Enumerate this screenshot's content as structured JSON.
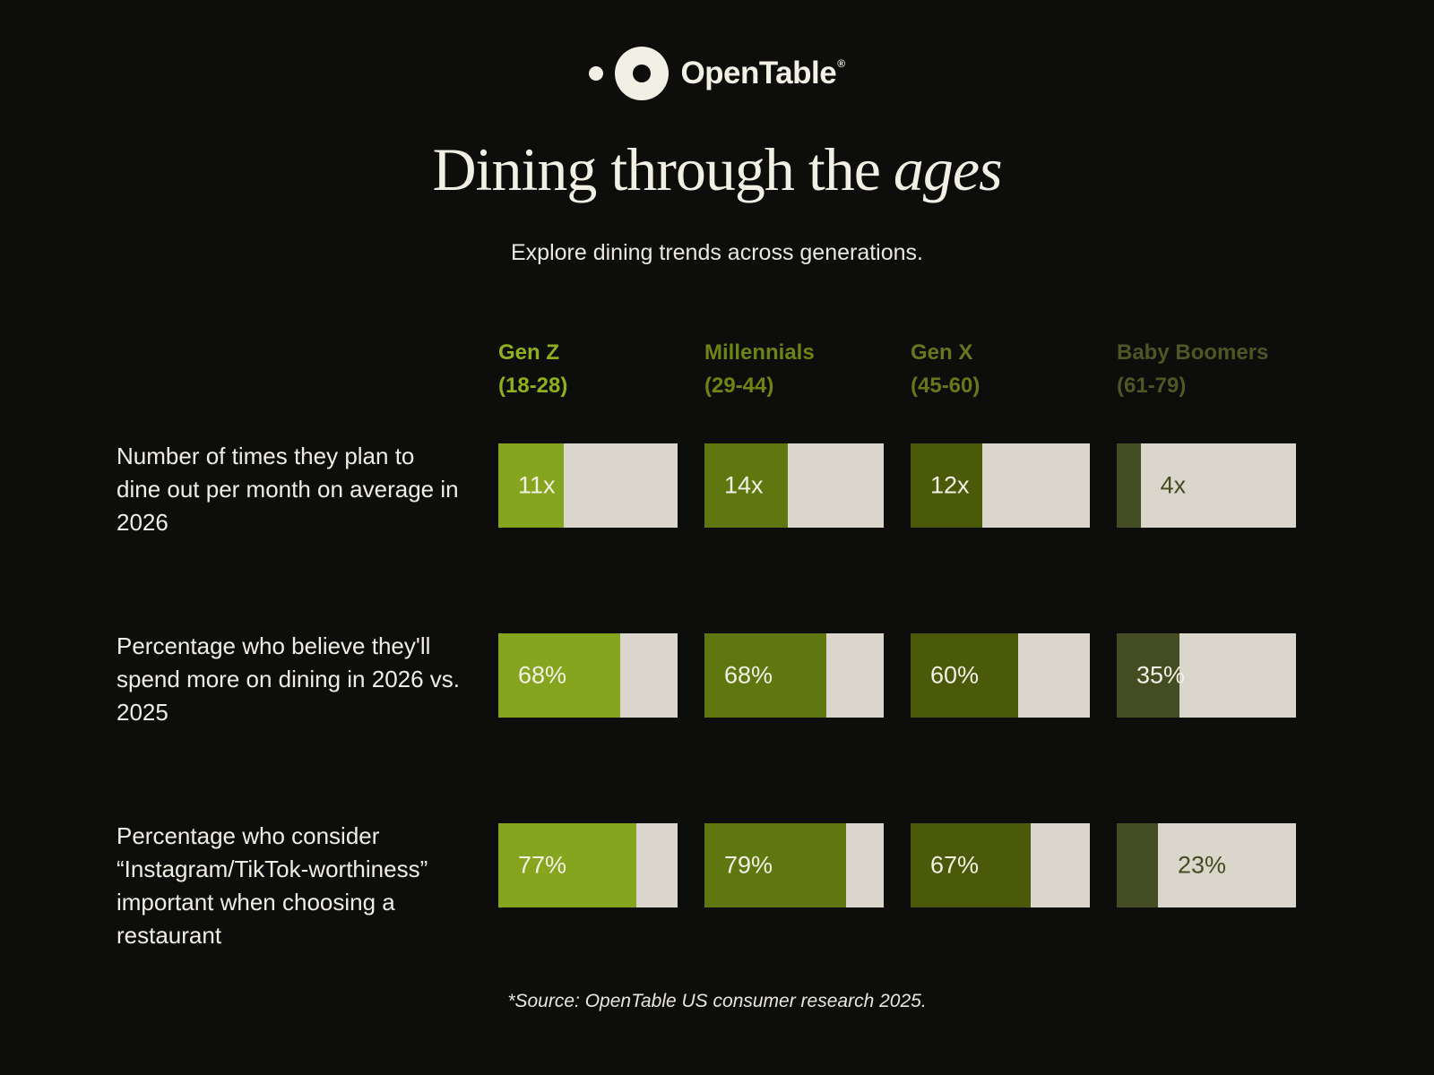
{
  "brand": {
    "logo_text": "OpenTable",
    "registered": "®"
  },
  "title": {
    "main": "Dining through the",
    "italic": "ages"
  },
  "subtitle": "Explore dining trends across generations.",
  "theme": {
    "background": "#0d0d0b",
    "cream_text": "#f2efe5",
    "bar_track": "#dad6cb",
    "value_text_inside": "#f3f0e6"
  },
  "columns": [
    {
      "name": "Gen Z",
      "range": "(18-28)",
      "header_color": "#8fb01e",
      "fill_color": "#86a51f"
    },
    {
      "name": "Millennials",
      "range": "(29-44)",
      "header_color": "#6e8415",
      "fill_color": "#5e770f"
    },
    {
      "name": "Gen X",
      "range": "(45-60)",
      "header_color": "#68771b",
      "fill_color": "#4b5a09"
    },
    {
      "name": "Baby Boomers",
      "range": "(61-79)",
      "header_color": "#4f5626",
      "fill_color": "#444c22"
    }
  ],
  "chart_data": {
    "type": "bar",
    "title": "Dining through the ages",
    "subtitle": "Explore dining trends across generations.",
    "categories": [
      "Gen Z (18-28)",
      "Millennials (29-44)",
      "Gen X (45-60)",
      "Baby Boomers (61-79)"
    ],
    "series": [
      {
        "name": "Number of times they plan to dine out per month on average in 2026",
        "values": [
          11,
          14,
          12,
          4
        ],
        "unit": "x",
        "scale_max": 30
      },
      {
        "name": "Percentage who believe they'll spend more on dining in 2026 vs. 2025",
        "values": [
          68,
          68,
          60,
          35
        ],
        "unit": "%",
        "scale_max": 100
      },
      {
        "name": "Percentage who consider “Instagram/TikTok-worthiness” important when choosing a restaurant",
        "values": [
          77,
          79,
          67,
          23
        ],
        "unit": "%",
        "scale_max": 100
      }
    ],
    "legend_position": "top",
    "grid": false,
    "source": "*Source: OpenTable US consumer research 2025."
  },
  "footer": "*Source: OpenTable US consumer research 2025."
}
